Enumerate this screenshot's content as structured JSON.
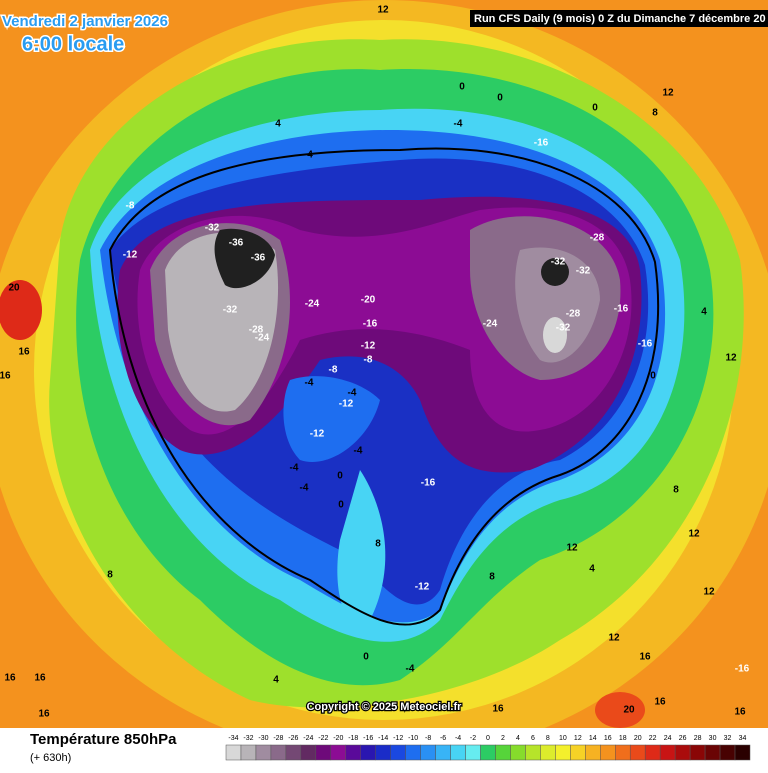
{
  "header": {
    "date": "Vendredi 2 janvier 2026",
    "time": "6:00 locale",
    "run": "Run CFS Daily (9 mois) 0 Z du Dimanche 7 décembre 20"
  },
  "copyright": "Copyright © 2025 Meteociel.fr",
  "footer": {
    "title": "Température 850hPa",
    "lead": "(+ 630h)"
  },
  "contour_labels": [
    12,
    0,
    0,
    0,
    12,
    8,
    -4,
    4,
    -16,
    4,
    -8,
    -32,
    -36,
    -36,
    -12,
    -28,
    -32,
    -32,
    20,
    -24,
    -20,
    -32,
    -16,
    -28,
    -28,
    -24,
    -16,
    -24,
    -32,
    -16,
    -12,
    -8,
    4,
    16,
    12,
    -8,
    -4,
    -4,
    -12,
    0,
    16,
    -12,
    -4,
    -4,
    0,
    -16,
    -4,
    8,
    0,
    8,
    12,
    -12,
    12,
    12,
    0,
    -4,
    16,
    -16,
    4,
    16,
    16,
    16,
    20,
    16,
    16,
    16,
    8,
    4,
    8,
    12
  ],
  "scale": {
    "ticks": [
      -34,
      -32,
      -30,
      -28,
      -26,
      -24,
      -22,
      -20,
      -18,
      -16,
      -14,
      -12,
      -10,
      -8,
      -6,
      -4,
      -2,
      0,
      2,
      4,
      6,
      8,
      10,
      12,
      14,
      16,
      18,
      20,
      22,
      24,
      26,
      28,
      30,
      32,
      34
    ],
    "colors": [
      "#d8d8d8",
      "#b8b4b8",
      "#a08ca0",
      "#8a6a8a",
      "#744874",
      "#622a62",
      "#6e0a7a",
      "#8c0c94",
      "#5a0a9a",
      "#2a16b0",
      "#1a2cc8",
      "#1a48e0",
      "#1e6ef0",
      "#2a90f4",
      "#38b4f6",
      "#48d4f4",
      "#66ecf0",
      "#2ccc64",
      "#56d43a",
      "#86dc2c",
      "#b6e42a",
      "#dcec2c",
      "#f4f02c",
      "#f6d226",
      "#f6b222",
      "#f4921e",
      "#f06e1c",
      "#ea4a1a",
      "#de2a18",
      "#c81414",
      "#aa0c0c",
      "#8a0606",
      "#6a0404",
      "#480202",
      "#2a0000"
    ]
  }
}
